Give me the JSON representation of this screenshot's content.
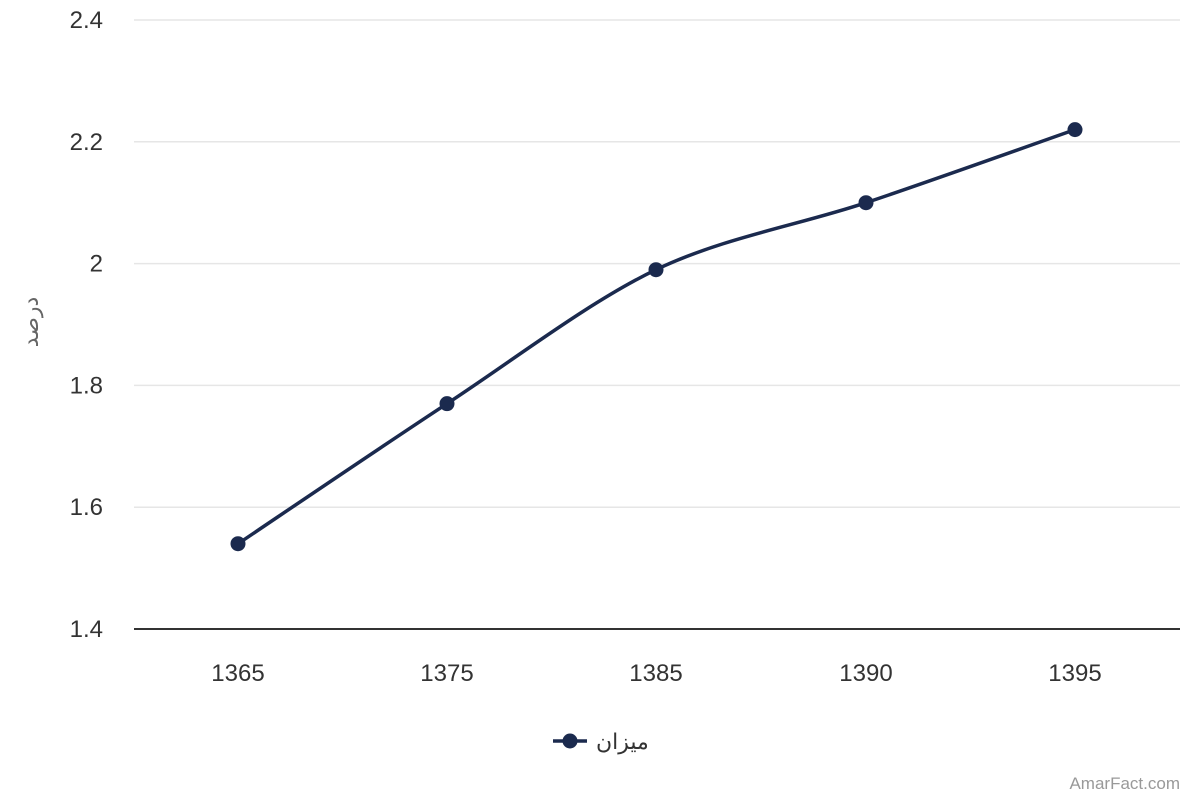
{
  "chart_data": {
    "type": "line",
    "categories": [
      "1365",
      "1375",
      "1385",
      "1390",
      "1395"
    ],
    "series": [
      {
        "name": "میزان",
        "values": [
          1.54,
          1.77,
          1.99,
          2.1,
          2.22
        ],
        "color": "#1b2a4e"
      }
    ],
    "ylabel": "درصد",
    "xlabel": "",
    "ylim": [
      1.4,
      2.4
    ],
    "yticks": [
      "1.4",
      "1.6",
      "1.8",
      "2",
      "2.2",
      "2.4"
    ],
    "grid": true,
    "legend_position": "bottom-center"
  },
  "credit": "AmarFact.com",
  "colors": {
    "line": "#1b2a4e",
    "grid": "#e6e6e6",
    "axis": "#333333"
  }
}
